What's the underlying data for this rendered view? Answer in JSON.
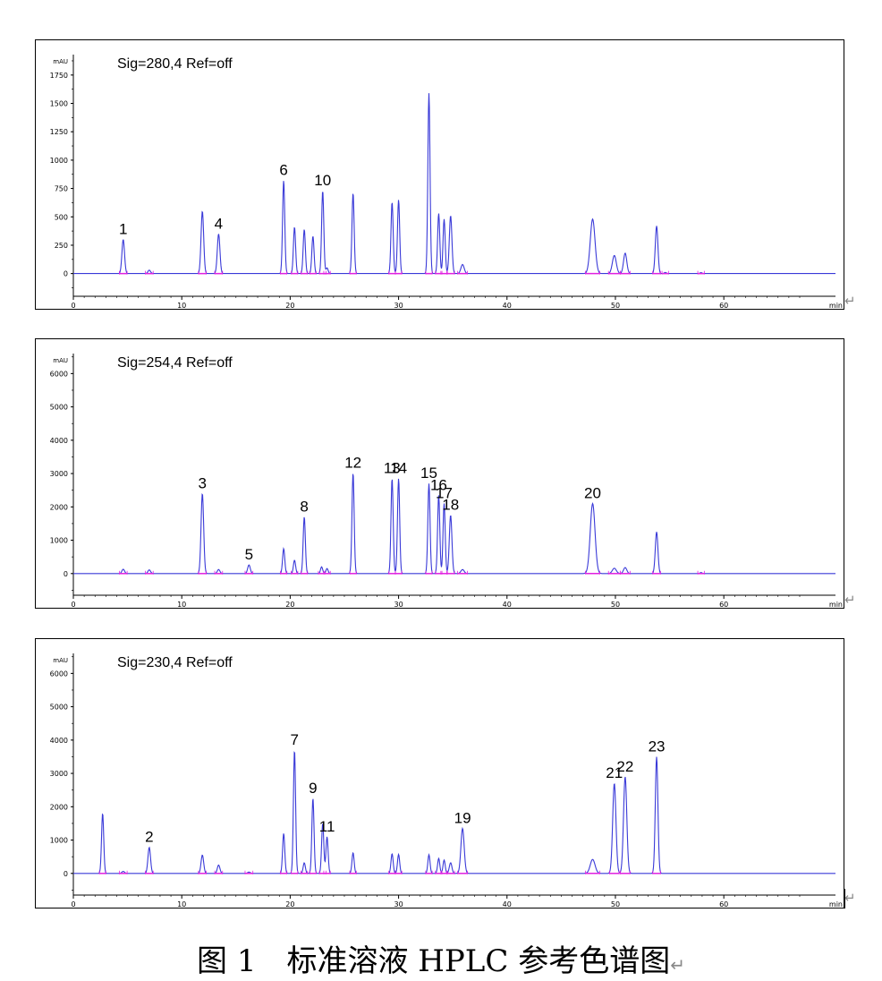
{
  "caption": {
    "text": "图 1　标准溶液 HPLC 参考色谱图",
    "return_mark": "↵"
  },
  "colors": {
    "trace": "#3a3ad8",
    "integration": "#e020e0",
    "axis": "#000000",
    "frame": "#000000"
  },
  "chart_data": [
    {
      "type": "line",
      "title": "Sig=280,4 Ref=off",
      "ylabel": "mAU",
      "xlabel": "min",
      "xlim": [
        0,
        67
      ],
      "ylim": [
        -200,
        1930
      ],
      "xticks": [
        0,
        10,
        20,
        30,
        40,
        50,
        60
      ],
      "xtick_labels": [
        "0",
        "10",
        "20",
        "30",
        "40",
        "50",
        "60"
      ],
      "yticks": [
        0,
        250,
        500,
        750,
        1000,
        1250,
        1500,
        1750
      ],
      "ytick_labels": [
        "0",
        "250",
        "500",
        "750",
        "1000",
        "1250",
        "1500",
        "1750"
      ],
      "baseline": 0,
      "peaks": [
        {
          "rt": 4.6,
          "height": 300,
          "width": 0.12,
          "label": "1"
        },
        {
          "rt": 7.0,
          "height": 30,
          "width": 0.12
        },
        {
          "rt": 11.9,
          "height": 550,
          "width": 0.12
        },
        {
          "rt": 13.4,
          "height": 350,
          "width": 0.12,
          "label": "4"
        },
        {
          "rt": 19.4,
          "height": 820,
          "width": 0.1,
          "label": "6"
        },
        {
          "rt": 20.4,
          "height": 410,
          "width": 0.1
        },
        {
          "rt": 21.3,
          "height": 390,
          "width": 0.1
        },
        {
          "rt": 22.1,
          "height": 330,
          "width": 0.1
        },
        {
          "rt": 23.0,
          "height": 730,
          "width": 0.1,
          "label": "10"
        },
        {
          "rt": 23.4,
          "height": 50,
          "width": 0.1
        },
        {
          "rt": 25.8,
          "height": 710,
          "width": 0.1
        },
        {
          "rt": 29.4,
          "height": 630,
          "width": 0.1
        },
        {
          "rt": 30.0,
          "height": 650,
          "width": 0.1
        },
        {
          "rt": 32.8,
          "height": 1590,
          "width": 0.1
        },
        {
          "rt": 33.7,
          "height": 530,
          "width": 0.1
        },
        {
          "rt": 34.2,
          "height": 480,
          "width": 0.1
        },
        {
          "rt": 34.8,
          "height": 510,
          "width": 0.12
        },
        {
          "rt": 35.9,
          "height": 80,
          "width": 0.15
        },
        {
          "rt": 47.9,
          "height": 480,
          "width": 0.22
        },
        {
          "rt": 49.9,
          "height": 160,
          "width": 0.18
        },
        {
          "rt": 50.9,
          "height": 180,
          "width": 0.15
        },
        {
          "rt": 53.8,
          "height": 420,
          "width": 0.12
        },
        {
          "rt": 54.6,
          "height": 10,
          "width": 0.1
        },
        {
          "rt": 57.9,
          "height": 8,
          "width": 0.1
        }
      ]
    },
    {
      "type": "line",
      "title": "Sig=254,4 Ref=off",
      "ylabel": "mAU",
      "xlabel": "min",
      "xlim": [
        0,
        67
      ],
      "ylim": [
        -650,
        6600
      ],
      "xticks": [
        0,
        10,
        20,
        30,
        40,
        50,
        60
      ],
      "xtick_labels": [
        "0",
        "10",
        "20",
        "30",
        "40",
        "50",
        "60"
      ],
      "yticks": [
        0,
        1000,
        2000,
        3000,
        4000,
        5000,
        6000
      ],
      "ytick_labels": [
        "0",
        "1000",
        "2000",
        "3000",
        "4000",
        "5000",
        "6000"
      ],
      "baseline": 0,
      "peaks": [
        {
          "rt": 4.6,
          "height": 130,
          "width": 0.12
        },
        {
          "rt": 7.0,
          "height": 110,
          "width": 0.12
        },
        {
          "rt": 11.9,
          "height": 2400,
          "width": 0.12,
          "label": "3"
        },
        {
          "rt": 13.4,
          "height": 120,
          "width": 0.12
        },
        {
          "rt": 16.2,
          "height": 260,
          "width": 0.12,
          "label": "5"
        },
        {
          "rt": 19.4,
          "height": 750,
          "width": 0.1
        },
        {
          "rt": 20.4,
          "height": 400,
          "width": 0.1
        },
        {
          "rt": 21.3,
          "height": 1700,
          "width": 0.1,
          "label": "8"
        },
        {
          "rt": 22.9,
          "height": 200,
          "width": 0.1
        },
        {
          "rt": 23.4,
          "height": 150,
          "width": 0.1
        },
        {
          "rt": 25.8,
          "height": 3020,
          "width": 0.1,
          "label": "12"
        },
        {
          "rt": 29.4,
          "height": 2850,
          "width": 0.1,
          "label": "13"
        },
        {
          "rt": 30.0,
          "height": 2850,
          "width": 0.1,
          "label": "14"
        },
        {
          "rt": 32.8,
          "height": 2700,
          "width": 0.1,
          "label": "15"
        },
        {
          "rt": 33.7,
          "height": 2350,
          "width": 0.1,
          "label": "16"
        },
        {
          "rt": 34.2,
          "height": 2100,
          "width": 0.1,
          "label": "17"
        },
        {
          "rt": 34.8,
          "height": 1750,
          "width": 0.12,
          "label": "18"
        },
        {
          "rt": 35.9,
          "height": 120,
          "width": 0.15
        },
        {
          "rt": 47.9,
          "height": 2100,
          "width": 0.22,
          "label": "20"
        },
        {
          "rt": 49.9,
          "height": 160,
          "width": 0.18
        },
        {
          "rt": 50.9,
          "height": 180,
          "width": 0.15
        },
        {
          "rt": 53.8,
          "height": 1250,
          "width": 0.12
        },
        {
          "rt": 57.9,
          "height": 30,
          "width": 0.1
        }
      ]
    },
    {
      "type": "line",
      "title": "Sig=230,4 Ref=off",
      "ylabel": "mAU",
      "xlabel": "min",
      "xlim": [
        0,
        67
      ],
      "ylim": [
        -650,
        6600
      ],
      "xticks": [
        0,
        10,
        20,
        30,
        40,
        50,
        60
      ],
      "xtick_labels": [
        "0",
        "10",
        "20",
        "30",
        "40",
        "50",
        "60"
      ],
      "yticks": [
        0,
        1000,
        2000,
        3000,
        4000,
        5000,
        6000
      ],
      "ytick_labels": [
        "0",
        "1000",
        "2000",
        "3000",
        "4000",
        "5000",
        "6000"
      ],
      "baseline": 0,
      "peaks": [
        {
          "rt": 2.7,
          "height": 1800,
          "width": 0.1
        },
        {
          "rt": 4.6,
          "height": 60,
          "width": 0.12
        },
        {
          "rt": 7.0,
          "height": 780,
          "width": 0.12,
          "label": "2"
        },
        {
          "rt": 11.9,
          "height": 550,
          "width": 0.12
        },
        {
          "rt": 13.4,
          "height": 250,
          "width": 0.12
        },
        {
          "rt": 16.2,
          "height": 40,
          "width": 0.12
        },
        {
          "rt": 19.4,
          "height": 1200,
          "width": 0.1
        },
        {
          "rt": 20.4,
          "height": 3700,
          "width": 0.1,
          "label": "7"
        },
        {
          "rt": 21.3,
          "height": 320,
          "width": 0.1
        },
        {
          "rt": 22.1,
          "height": 2250,
          "width": 0.1,
          "label": "9"
        },
        {
          "rt": 23.0,
          "height": 1500,
          "width": 0.1
        },
        {
          "rt": 23.4,
          "height": 1100,
          "width": 0.1,
          "label": "11"
        },
        {
          "rt": 25.8,
          "height": 620,
          "width": 0.1
        },
        {
          "rt": 29.4,
          "height": 590,
          "width": 0.1
        },
        {
          "rt": 30.0,
          "height": 570,
          "width": 0.1
        },
        {
          "rt": 32.8,
          "height": 560,
          "width": 0.1
        },
        {
          "rt": 33.7,
          "height": 450,
          "width": 0.1
        },
        {
          "rt": 34.2,
          "height": 400,
          "width": 0.1
        },
        {
          "rt": 34.8,
          "height": 320,
          "width": 0.12
        },
        {
          "rt": 35.9,
          "height": 1350,
          "width": 0.15,
          "label": "19"
        },
        {
          "rt": 47.9,
          "height": 420,
          "width": 0.22
        },
        {
          "rt": 49.9,
          "height": 2700,
          "width": 0.15,
          "label": "21"
        },
        {
          "rt": 50.9,
          "height": 2900,
          "width": 0.15,
          "label": "22"
        },
        {
          "rt": 53.8,
          "height": 3500,
          "width": 0.12,
          "label": "23"
        }
      ]
    }
  ]
}
